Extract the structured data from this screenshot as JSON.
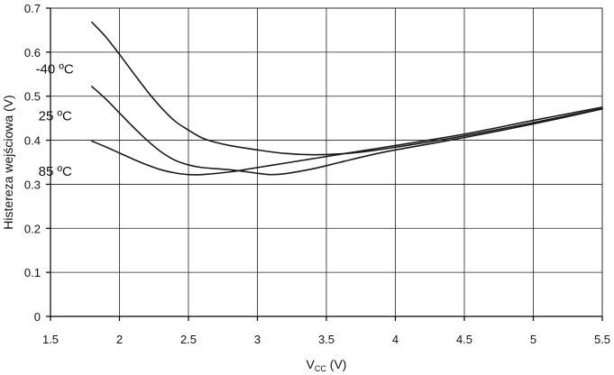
{
  "chart_data": {
    "type": "line",
    "title": "",
    "xlabel_main": "V",
    "xlabel_sub": "CC",
    "xlabel_unit": " (V)",
    "ylabel": "Histereza wejściowa (V)",
    "xlim": [
      1.5,
      5.5
    ],
    "ylim": [
      0,
      0.7
    ],
    "grid": true,
    "x_ticks": [
      1.5,
      2,
      2.5,
      3,
      3.5,
      4,
      4.5,
      5,
      5.5
    ],
    "x_tick_labels": [
      "1.5",
      "2",
      "2.5",
      "3",
      "3.5",
      "4",
      "4.5",
      "5",
      "5.5"
    ],
    "y_ticks": [
      0,
      0.1,
      0.2,
      0.3,
      0.4,
      0.5,
      0.6,
      0.7
    ],
    "y_tick_labels": [
      "0",
      "0.1",
      "0.2",
      "0.3",
      "0.4",
      "0.5",
      "0.6",
      "0.7"
    ],
    "series": [
      {
        "name": "-40 ºC",
        "label_at": [
          1.85,
          0.562
        ],
        "x": [
          1.8,
          1.9,
          2.0,
          2.1,
          2.2,
          2.3,
          2.4,
          2.5,
          2.6,
          2.7,
          2.8,
          3.0,
          3.2,
          3.4,
          3.6,
          3.8,
          4.0,
          4.5,
          5.0,
          5.5
        ],
        "y": [
          0.668,
          0.635,
          0.595,
          0.553,
          0.512,
          0.475,
          0.444,
          0.423,
          0.405,
          0.395,
          0.388,
          0.378,
          0.37,
          0.367,
          0.369,
          0.375,
          0.384,
          0.41,
          0.44,
          0.472
        ]
      },
      {
        "name": "25 ºC",
        "label_at": [
          1.87,
          0.455
        ],
        "x": [
          1.8,
          1.9,
          2.0,
          2.1,
          2.2,
          2.3,
          2.4,
          2.5,
          2.6,
          2.8,
          3.0,
          3.1,
          3.2,
          3.4,
          3.6,
          3.8,
          4.0,
          4.5,
          5.0,
          5.5
        ],
        "y": [
          0.522,
          0.494,
          0.462,
          0.43,
          0.4,
          0.374,
          0.355,
          0.344,
          0.338,
          0.333,
          0.325,
          0.322,
          0.324,
          0.335,
          0.35,
          0.365,
          0.378,
          0.406,
          0.437,
          0.471
        ]
      },
      {
        "name": "85 ºC",
        "label_at": [
          1.87,
          0.33
        ],
        "x": [
          1.8,
          1.9,
          2.0,
          2.1,
          2.2,
          2.3,
          2.4,
          2.5,
          2.6,
          2.8,
          3.0,
          3.2,
          3.4,
          3.6,
          3.8,
          4.0,
          4.5,
          5.0,
          5.5
        ],
        "y": [
          0.398,
          0.385,
          0.371,
          0.357,
          0.344,
          0.333,
          0.326,
          0.322,
          0.322,
          0.328,
          0.338,
          0.348,
          0.358,
          0.368,
          0.378,
          0.388,
          0.414,
          0.445,
          0.475
        ]
      }
    ]
  }
}
